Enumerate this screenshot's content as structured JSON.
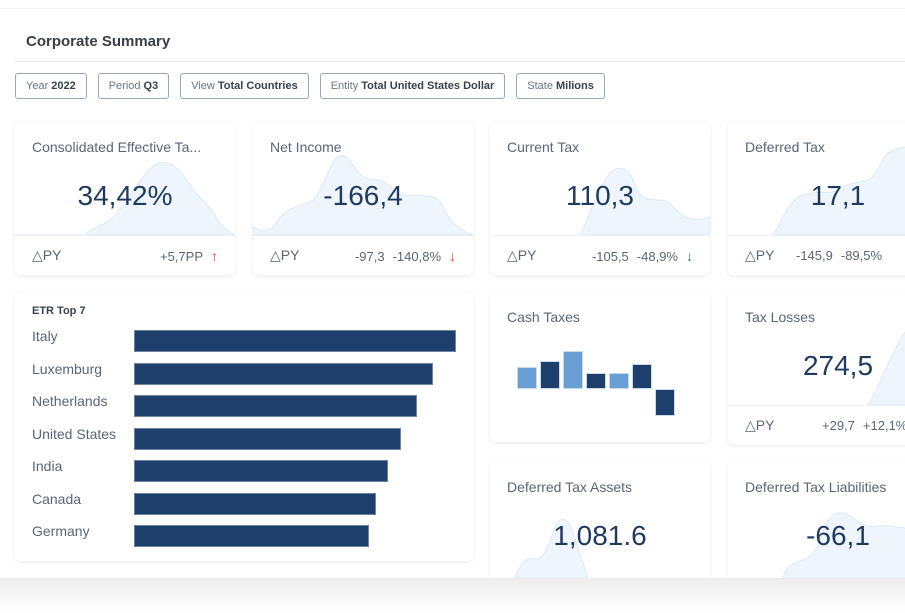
{
  "header": {
    "title": "Corporate Summary"
  },
  "filters": [
    {
      "label": "Year",
      "value": "2022"
    },
    {
      "label": "Period",
      "value": "Q3"
    },
    {
      "label": "View",
      "value": "Total Countries"
    },
    {
      "label": "Entity",
      "value": "Total United States Dollar"
    },
    {
      "label": "State",
      "value": "Milions"
    }
  ],
  "kpis": {
    "etr": {
      "title": "Consolidated Effective Ta...",
      "value": "34,42%",
      "delta_label": "△PY",
      "delta_abs": "",
      "delta_pct": "+5,7PP",
      "arrow": "↑"
    },
    "net_income": {
      "title": "Net Income",
      "value": "-166,4",
      "delta_label": "△PY",
      "delta_abs": "-97,3",
      "delta_pct": "-140,8%",
      "arrow": "↓"
    },
    "current_tax": {
      "title": "Current Tax",
      "value": "110,3",
      "delta_label": "△PY",
      "delta_abs": "-105,5",
      "delta_pct": "-48,9%",
      "arrow": "↓"
    },
    "deferred_tax": {
      "title": "Deferred Tax",
      "value": "17,1",
      "delta_label": "△PY",
      "delta_abs": "-145,9",
      "delta_pct": "-89,5%"
    },
    "tax_losses": {
      "title": "Tax Losses",
      "value": "274,5",
      "delta_label": "△PY",
      "delta_abs": "+29,7",
      "delta_pct": "+12,1%"
    },
    "cash_taxes": {
      "title": "Cash Taxes"
    },
    "dta": {
      "title": "Deferred Tax Assets",
      "value": "1,081.6"
    },
    "dtl": {
      "title": "Deferred Tax Liabilities",
      "value": "-66,1"
    }
  },
  "colors": {
    "navy": "#1e3f6b",
    "light_blue": "#6a9fd4",
    "up_red": "#e0392b",
    "down_green": "#2e8b47"
  },
  "chart_data": [
    {
      "type": "bar",
      "orientation": "horizontal",
      "title": "ETR Top 7",
      "categories": [
        "Italy",
        "Luxemburg",
        "Netherlands",
        "United States",
        "India",
        "Canada",
        "Germany"
      ],
      "values": [
        100,
        93,
        88,
        83,
        79,
        75,
        73
      ],
      "units": "relative (no axis shown)"
    },
    {
      "type": "bar",
      "title": "Cash Taxes",
      "categories": [
        "1",
        "2",
        "3",
        "4",
        "5",
        "6",
        "7"
      ],
      "values": [
        22,
        28,
        38,
        16,
        16,
        25,
        -27
      ],
      "colors": [
        "light",
        "dark",
        "light",
        "dark",
        "light",
        "dark",
        "dark"
      ],
      "units": "relative (no axis shown)"
    }
  ]
}
